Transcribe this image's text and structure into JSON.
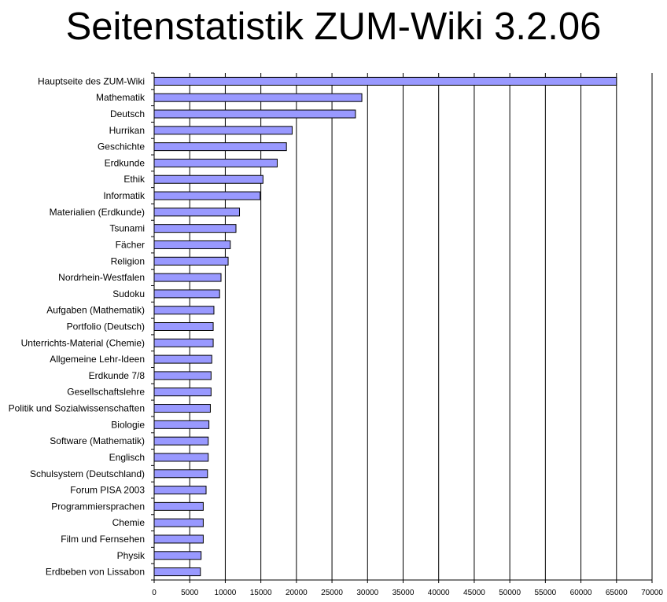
{
  "colors": {
    "bar_fill": "#9999ff",
    "bar_stroke": "#000000",
    "grid": "#000000",
    "background": "#ffffff"
  },
  "chart_data": {
    "type": "bar",
    "orientation": "horizontal",
    "title": "Seitenstatistik ZUM-Wiki 3.2.06",
    "xlabel": "",
    "ylabel": "",
    "xlim": [
      0,
      70000
    ],
    "x_ticks": [
      0,
      5000,
      10000,
      15000,
      20000,
      25000,
      30000,
      35000,
      40000,
      45000,
      50000,
      55000,
      60000,
      65000,
      70000
    ],
    "grid": "vertical major gridlines",
    "legend": "none",
    "categories": [
      "Hauptseite des ZUM-Wiki",
      "Mathematik",
      "Deutsch",
      "Hurrikan",
      "Geschichte",
      "Erdkunde",
      "Ethik",
      "Informatik",
      "Materialien (Erdkunde)",
      "Tsunami",
      "Fächer",
      "Religion",
      "Nordrhein-Westfalen",
      "Sudoku",
      "Aufgaben (Mathematik)",
      "Portfolio (Deutsch)",
      "Unterrichts-Material (Chemie)",
      "Allgemeine Lehr-Ideen",
      "Erdkunde 7/8",
      "Gesellschaftslehre",
      "Politik und Sozialwissenschaften",
      "Biologie",
      "Software (Mathematik)",
      "Englisch",
      "Schulsystem (Deutschland)",
      "Forum PISA 2003",
      "Programmiersprachen",
      "Chemie",
      "Film und Fernsehen",
      "Physik",
      "Erdbeben von Lissabon"
    ],
    "values": [
      65000,
      29200,
      28300,
      19400,
      18600,
      17300,
      15300,
      14900,
      12000,
      11500,
      10700,
      10400,
      9400,
      9200,
      8400,
      8300,
      8300,
      8100,
      8000,
      8000,
      7900,
      7700,
      7600,
      7600,
      7500,
      7300,
      6900,
      6900,
      6900,
      6600,
      6500
    ]
  }
}
